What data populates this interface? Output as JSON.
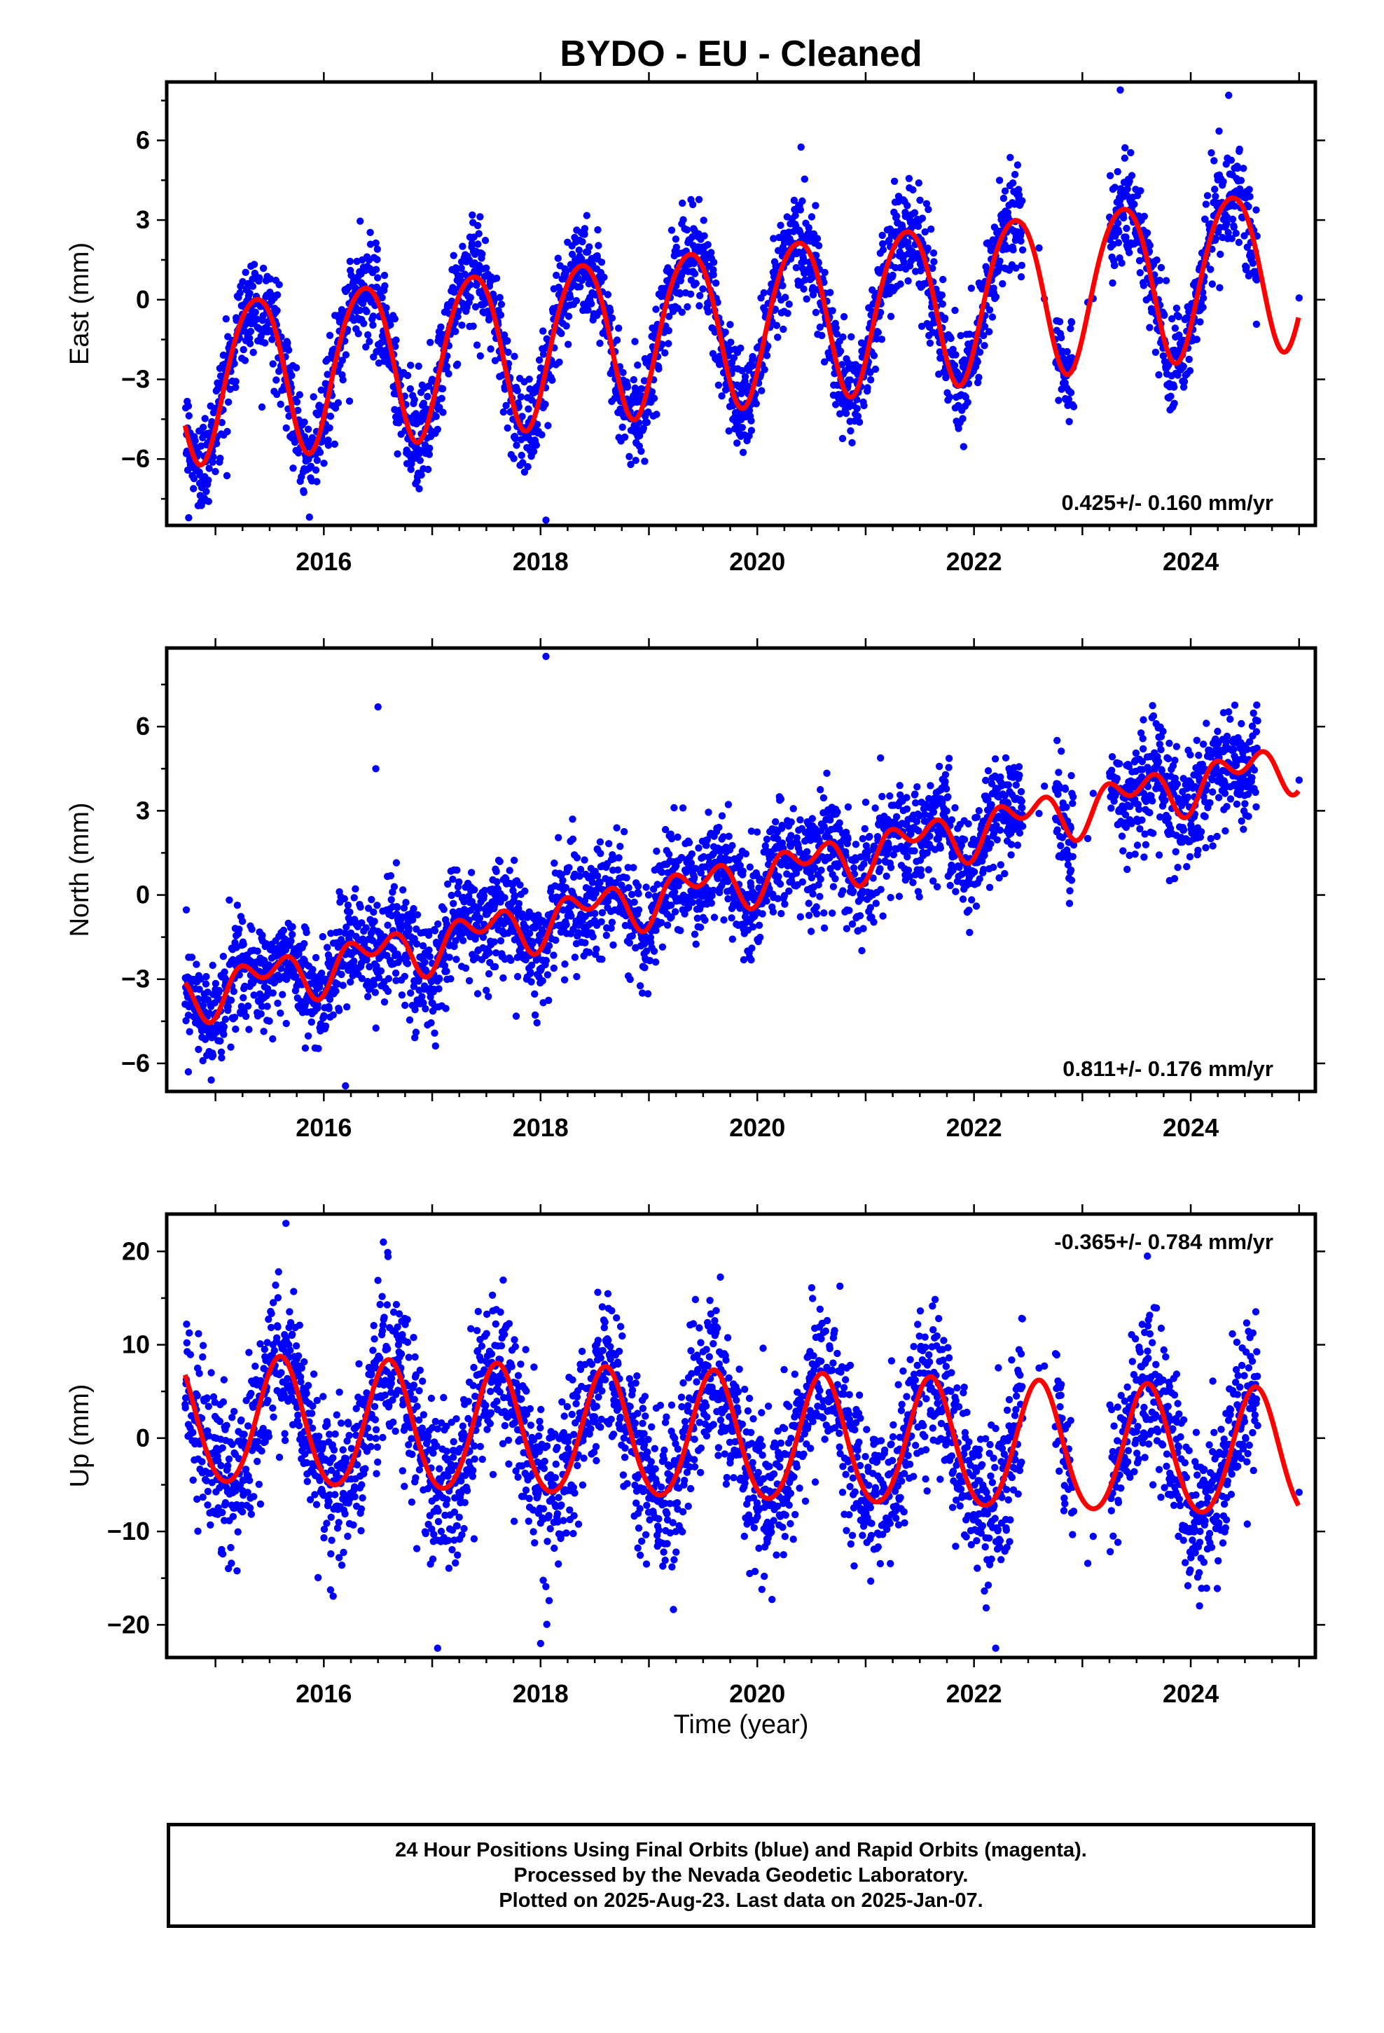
{
  "title": "BYDO  - EU - Cleaned",
  "xlabel": "Time (year)",
  "caption": {
    "line1": "24 Hour Positions Using Final Orbits (blue) and Rapid Orbits (magenta).",
    "line2": "Processed by the Nevada Geodetic Laboratory.",
    "line3": "Plotted on 2025-Aug-23. Last data on 2025-Jan-07."
  },
  "colors": {
    "data": "#0000ff",
    "model": "#ff0000",
    "axis": "#000000"
  },
  "chart_data": [
    {
      "type": "scatter",
      "component": "East",
      "ylabel": "East (mm)",
      "rate_label": "0.425+/- 0.160 mm/yr",
      "xlim": [
        2014.55,
        2025.15
      ],
      "ylim": [
        -8.5,
        8.2
      ],
      "yticks": [
        -6,
        -3,
        0,
        3,
        6
      ],
      "xticks": [
        2016,
        2018,
        2020,
        2022,
        2024
      ],
      "model": {
        "t0": 2014.7,
        "y0": -3.0,
        "rate": 0.425,
        "annual_amp": 3.0,
        "annual_peak": 0.37,
        "semi_amp": 0.3,
        "semi_peak": 0.1
      },
      "noise_sd": 0.95,
      "outliers": [
        [
          2018.05,
          -8.3
        ],
        [
          2016.9,
          -6.6
        ],
        [
          2023.35,
          7.9
        ],
        [
          2024.35,
          7.7
        ]
      ]
    },
    {
      "type": "scatter",
      "component": "North",
      "ylabel": "North (mm)",
      "rate_label": "0.811+/- 0.176 mm/yr",
      "xlim": [
        2014.55,
        2025.15
      ],
      "ylim": [
        -7.0,
        8.8
      ],
      "yticks": [
        -6,
        -3,
        0,
        3,
        6
      ],
      "xticks": [
        2016,
        2018,
        2020,
        2022,
        2024
      ],
      "model": {
        "t0": 2014.7,
        "y0": -3.6,
        "rate": 0.811,
        "annual_amp": 0.6,
        "annual_peak": 0.45,
        "semi_amp": 0.55,
        "semi_peak": 0.2
      },
      "noise_sd": 0.95,
      "outliers": [
        [
          2018.05,
          8.5
        ],
        [
          2016.5,
          6.7
        ],
        [
          2016.48,
          4.5
        ],
        [
          2016.2,
          -6.8
        ],
        [
          2014.75,
          -6.3
        ]
      ]
    },
    {
      "type": "scatter",
      "component": "Up",
      "ylabel": "Up (mm)",
      "rate_label": "-0.365+/- 0.784 mm/yr",
      "xlim": [
        2014.55,
        2025.15
      ],
      "ylim": [
        -23.5,
        24.0
      ],
      "yticks": [
        -20,
        -10,
        0,
        10,
        20
      ],
      "xticks": [
        2016,
        2018,
        2020,
        2022,
        2024
      ],
      "model": {
        "t0": 2014.7,
        "y0": 1.8,
        "rate": -0.365,
        "annual_amp": 6.8,
        "annual_peak": 0.6,
        "semi_amp": 0.5,
        "semi_peak": 0.1
      },
      "noise_sd": 4.2,
      "outliers": [
        [
          2015.65,
          23.0
        ],
        [
          2016.55,
          21.0
        ],
        [
          2018.0,
          -22.0
        ],
        [
          2017.05,
          -22.5
        ],
        [
          2022.2,
          -22.5
        ],
        [
          2023.6,
          19.5
        ]
      ]
    }
  ]
}
